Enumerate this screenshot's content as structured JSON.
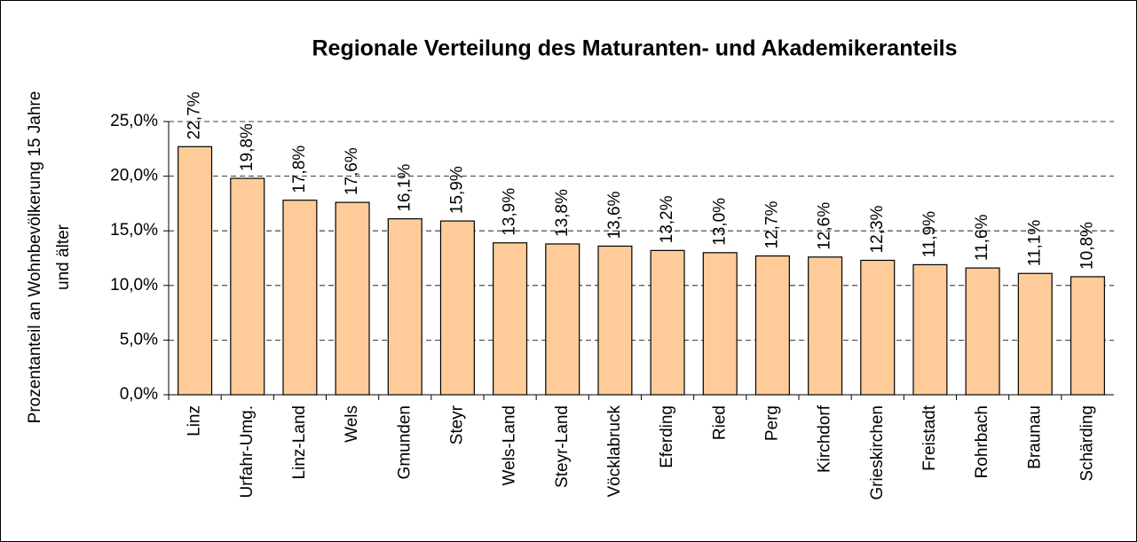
{
  "chart_data": {
    "type": "bar",
    "title": "Regionale Verteilung des Maturanten- und Akademikeranteils",
    "y_label": [
      "Prozentanteil an Wohnbevölkerung 15 Jahre",
      "und älter"
    ],
    "categories": [
      "Linz",
      "Urfahr-Umg.",
      "Linz-Land",
      "Wels",
      "Gmunden",
      "Steyr",
      "Wels-Land",
      "Steyr-Land",
      "Vöcklabruck",
      "Eferding",
      "Ried",
      "Perg",
      "Kirchdorf",
      "Grieskirchen",
      "Freistadt",
      "Rohrbach",
      "Braunau",
      "Schärding"
    ],
    "values": [
      22.7,
      19.8,
      17.8,
      17.6,
      16.1,
      15.9,
      13.9,
      13.8,
      13.6,
      13.2,
      13.0,
      12.7,
      12.6,
      12.3,
      11.9,
      11.6,
      11.1,
      10.8
    ],
    "value_labels": [
      "22,7%",
      "19,8%",
      "17,8%",
      "17,6%",
      "16,1%",
      "15,9%",
      "13,9%",
      "13,8%",
      "13,6%",
      "13,2%",
      "13,0%",
      "12,7%",
      "12,6%",
      "12,3%",
      "11,9%",
      "11,6%",
      "11,1%",
      "10,8%"
    ],
    "color": "#ffcc99",
    "ylim": [
      0,
      25
    ],
    "yticks": [
      {
        "value": 0,
        "label": "0,0%"
      },
      {
        "value": 5,
        "label": "5,0%"
      },
      {
        "value": 10,
        "label": "10,0%"
      },
      {
        "value": 15,
        "label": "15,0%"
      },
      {
        "value": 20,
        "label": "20,0%"
      },
      {
        "value": 25,
        "label": "25,0%"
      }
    ],
    "grid": true
  }
}
